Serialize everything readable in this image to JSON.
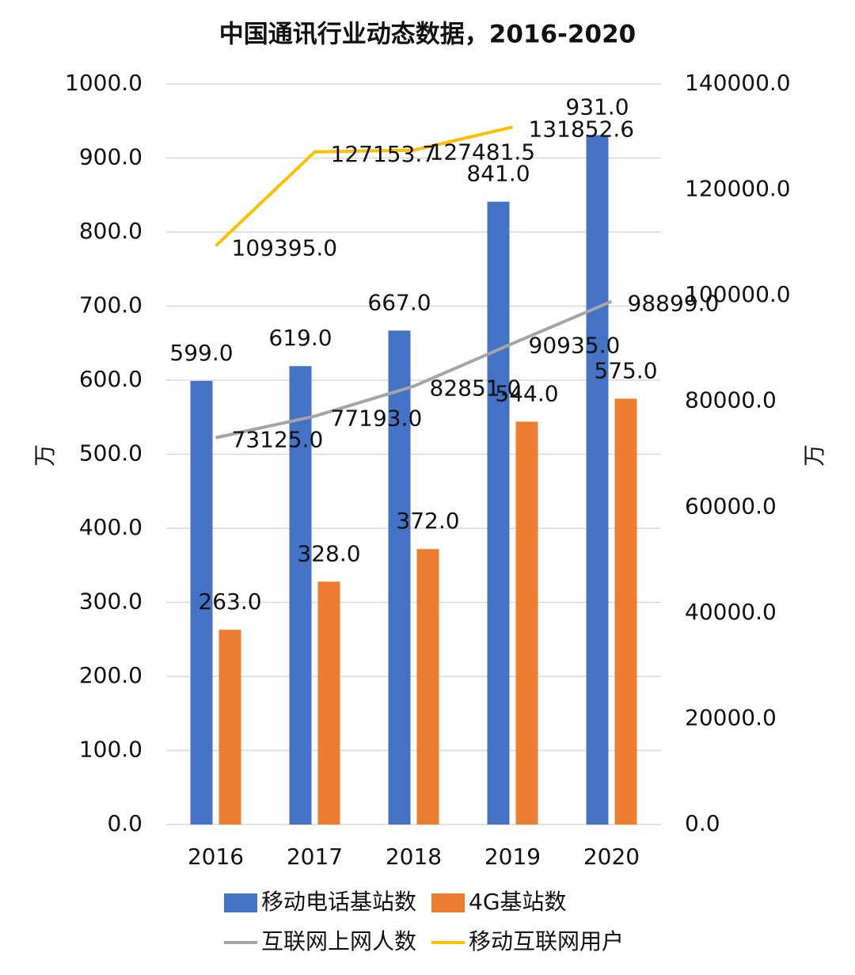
{
  "chart_data": {
    "type": "bar",
    "title": "中国通讯行业动态数据，2016-2020",
    "categories": [
      "2016",
      "2017",
      "2018",
      "2019",
      "2020"
    ],
    "ylabel": "万",
    "y2label": "万",
    "ylim": [
      0,
      1000
    ],
    "yticks": [
      {
        "value": 0,
        "label": "0.0"
      },
      {
        "value": 100,
        "label": "100.0"
      },
      {
        "value": 200,
        "label": "200.0"
      },
      {
        "value": 300,
        "label": "300.0"
      },
      {
        "value": 400,
        "label": "400.0"
      },
      {
        "value": 500,
        "label": "500.0"
      },
      {
        "value": 600,
        "label": "600.0"
      },
      {
        "value": 700,
        "label": "700.0"
      },
      {
        "value": 800,
        "label": "800.0"
      },
      {
        "value": 900,
        "label": "900.0"
      },
      {
        "value": 1000,
        "label": "1000.0"
      }
    ],
    "y2lim": [
      0,
      140000
    ],
    "y2ticks": [
      {
        "value": 0,
        "label": "0.0"
      },
      {
        "value": 20000,
        "label": "20000.0"
      },
      {
        "value": 40000,
        "label": "40000.0"
      },
      {
        "value": 60000,
        "label": "60000.0"
      },
      {
        "value": 80000,
        "label": "80000.0"
      },
      {
        "value": 100000,
        "label": "100000.0"
      },
      {
        "value": 120000,
        "label": "120000.0"
      },
      {
        "value": 140000,
        "label": "140000.0"
      }
    ],
    "grid": true,
    "series": [
      {
        "name": "移动电话基站数",
        "type": "bar",
        "color": "#4472c4",
        "values": [
          599,
          619,
          667,
          841,
          931
        ],
        "value_labels": [
          "599.0",
          "619.0",
          "667.0",
          "841.0",
          "931.0"
        ]
      },
      {
        "name": "4G基站数",
        "type": "bar",
        "color": "#ed7d31",
        "values": [
          263,
          328,
          372,
          544,
          575
        ],
        "value_labels": [
          "263.0",
          "328.0",
          "372.0",
          "544.0",
          "575.0"
        ]
      },
      {
        "name": "互联网上网人数",
        "type": "line",
        "axis": "y2",
        "color": "#a5a5a5",
        "values": [
          73125,
          77193,
          82851,
          90935,
          98899
        ],
        "value_labels": [
          "73125.0",
          "77193.0",
          "82851.0",
          "90935.0",
          "98899.0"
        ]
      },
      {
        "name": "移动互联网用户",
        "type": "line",
        "axis": "y2",
        "color": "#ffc000",
        "values": [
          109395,
          127153.7,
          127481.5,
          131852.6,
          null
        ],
        "value_labels": [
          "109395.0",
          "127153.7",
          "127481.5",
          "131852.6",
          null
        ]
      }
    ]
  }
}
